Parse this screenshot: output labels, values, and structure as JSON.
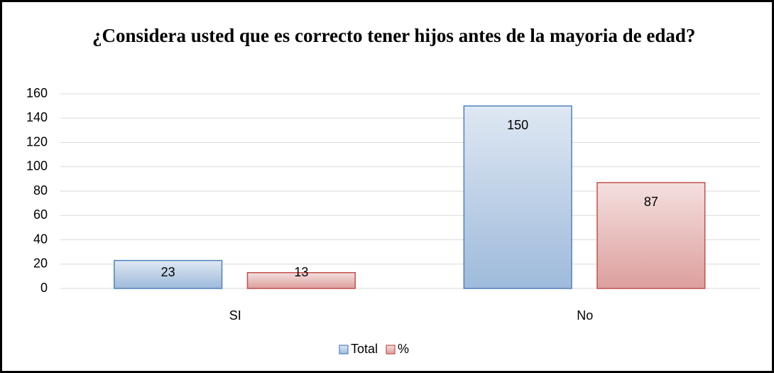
{
  "chart_data": {
    "type": "bar",
    "title": "¿Considera usted que es correcto tener hijos antes de la mayoria de edad?",
    "categories": [
      "SI",
      "No"
    ],
    "series": [
      {
        "name": "Total",
        "color": "#4f81bd",
        "values": [
          23,
          150
        ]
      },
      {
        "name": "%",
        "color": "#c0504d",
        "values": [
          13,
          87
        ]
      }
    ],
    "ylim": [
      0,
      160
    ],
    "yticks": [
      0,
      20,
      40,
      60,
      80,
      100,
      120,
      140,
      160
    ],
    "grid": true,
    "legend": "bottom"
  }
}
